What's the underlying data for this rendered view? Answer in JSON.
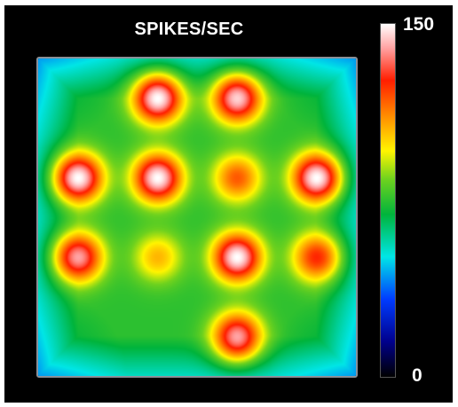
{
  "chart_data": {
    "type": "heatmap",
    "title": "SPIKES/SEC",
    "colorbar": {
      "min": 0,
      "max": 150,
      "min_label": "0",
      "max_label": "150",
      "colormap": "jet-like (black-blue-cyan-green-yellow-red-white)"
    },
    "grid": {
      "rows": 4,
      "cols": 4
    },
    "hotspots": [
      {
        "row": 0,
        "col": 1,
        "value": 150
      },
      {
        "row": 0,
        "col": 2,
        "value": 145
      },
      {
        "row": 1,
        "col": 0,
        "value": 150
      },
      {
        "row": 1,
        "col": 1,
        "value": 150
      },
      {
        "row": 1,
        "col": 2,
        "value": 118
      },
      {
        "row": 1,
        "col": 3,
        "value": 150
      },
      {
        "row": 2,
        "col": 0,
        "value": 140
      },
      {
        "row": 2,
        "col": 1,
        "value": 105
      },
      {
        "row": 2,
        "col": 2,
        "value": 150
      },
      {
        "row": 2,
        "col": 3,
        "value": 125
      },
      {
        "row": 3,
        "col": 2,
        "value": 140
      }
    ],
    "baseline_value": 75,
    "edge_value": 55
  }
}
